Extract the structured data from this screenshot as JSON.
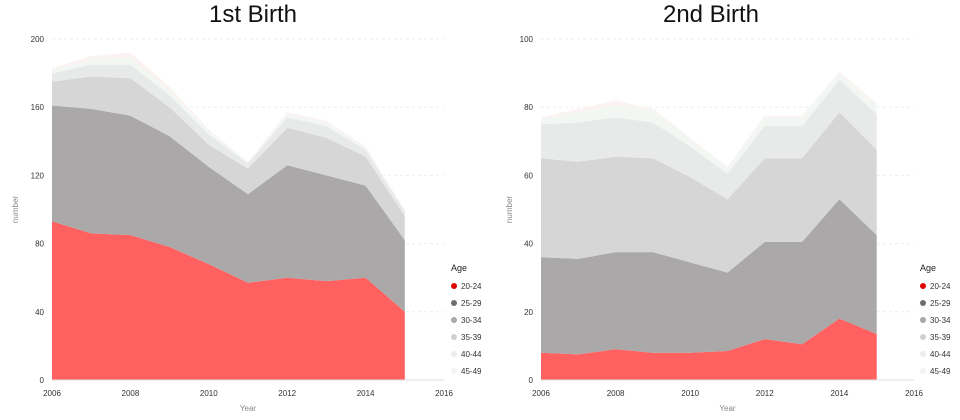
{
  "chart_data": [
    {
      "type": "area",
      "stacked": true,
      "title": "1st Birth",
      "xlabel": "Year",
      "ylabel": "number",
      "xlim": [
        2006,
        2016
      ],
      "ylim": [
        0,
        200
      ],
      "x_ticks": [
        "2006",
        "2008",
        "2010",
        "2012",
        "2014",
        "2016"
      ],
      "y_ticks": [
        "0",
        "40",
        "80",
        "120",
        "160",
        "200"
      ],
      "x": [
        2006,
        2007,
        2008,
        2009,
        2010,
        2011,
        2012,
        2013,
        2014,
        2015
      ],
      "legend_title": "Age",
      "legend_position": "bottom-right",
      "grid": true,
      "series": [
        {
          "name": "20-24",
          "color": "#ff6161",
          "values": [
            93,
            86,
            85,
            78,
            68,
            57,
            60,
            58,
            60,
            40
          ]
        },
        {
          "name": "25-29",
          "color": "#aaa8a8",
          "values": [
            68,
            73,
            70,
            65,
            57,
            52,
            66,
            62,
            54,
            42
          ]
        },
        {
          "name": "30-34",
          "color": "#d6d6d6",
          "values": [
            14,
            19,
            22,
            17,
            13,
            15,
            22,
            22,
            17,
            14
          ]
        },
        {
          "name": "35-39",
          "color": "#e8eae9",
          "values": [
            5,
            7,
            8,
            7,
            6,
            3,
            6,
            7,
            4,
            3
          ]
        },
        {
          "name": "40-44",
          "color": "#f3f7f4",
          "values": [
            2,
            3,
            4,
            3,
            2,
            1,
            2,
            2,
            1,
            1
          ]
        },
        {
          "name": "45-49",
          "color": "#fbf2f2",
          "values": [
            1,
            2,
            3,
            2,
            1,
            0,
            1,
            1,
            1,
            0
          ]
        }
      ]
    },
    {
      "type": "area",
      "stacked": true,
      "title": "2nd Birth",
      "xlabel": "Year",
      "ylabel": "number",
      "xlim": [
        2006,
        2016
      ],
      "ylim": [
        0,
        100
      ],
      "x_ticks": [
        "2006",
        "2008",
        "2010",
        "2012",
        "2014",
        "2016"
      ],
      "y_ticks": [
        "0",
        "20",
        "40",
        "60",
        "80",
        "100"
      ],
      "x": [
        2006,
        2007,
        2008,
        2009,
        2010,
        2011,
        2012,
        2013,
        2014,
        2015
      ],
      "legend_title": "Age",
      "legend_position": "bottom-right",
      "grid": true,
      "series": [
        {
          "name": "20-24",
          "color": "#ff6161",
          "values": [
            8,
            7.5,
            9,
            8,
            8,
            8.5,
            12,
            10.5,
            18,
            13.5
          ]
        },
        {
          "name": "25-29",
          "color": "#aaa8a8",
          "values": [
            28,
            28,
            28.5,
            29.5,
            26.5,
            23,
            28.5,
            30,
            35,
            29
          ]
        },
        {
          "name": "30-34",
          "color": "#d6d6d6",
          "values": [
            29,
            28.5,
            28,
            27.5,
            25,
            21.5,
            24.5,
            24.5,
            25.5,
            25
          ]
        },
        {
          "name": "35-39",
          "color": "#e8eae9",
          "values": [
            10,
            11.5,
            11.5,
            10.5,
            9,
            7.5,
            9.5,
            9.5,
            9.5,
            10.5
          ]
        },
        {
          "name": "40-44",
          "color": "#f3f7f4",
          "values": [
            1.5,
            3,
            3.5,
            3.5,
            2,
            1.5,
            2.5,
            2.5,
            2,
            2.5
          ]
        },
        {
          "name": "45-49",
          "color": "#fbf2f2",
          "values": [
            0.5,
            1,
            1.5,
            0.5,
            0.5,
            0.5,
            0.5,
            0.5,
            0.5,
            0.5
          ]
        }
      ]
    }
  ],
  "legend_dot_colors": [
    "#e00000",
    "#6e6e6e",
    "#a8a8a8",
    "#cfcfcf",
    "#ececec",
    "#f4f4f4"
  ]
}
